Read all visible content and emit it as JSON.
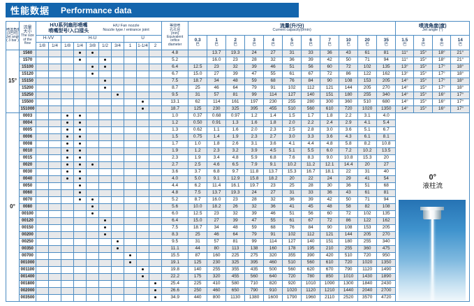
{
  "title": {
    "zh": "性能数据",
    "en": "Performance data"
  },
  "header": {
    "jet_angle_col": {
      "zh1": "喷流角度",
      "zh2": "(3巴时)",
      "en1": "Jet angle",
      "en2": "( 3 bar )"
    },
    "flow_col": {
      "zh1": "流量",
      "zh2": "大小",
      "en1": "The size",
      "en2": "of the",
      "en3": "flow"
    },
    "nozzle_group": {
      "zh1": "H/U系列扇形喷嘴",
      "zh2": "喷嘴型号/入口接头",
      "en1": "H/U  Fan nozzle",
      "en2": "Nozzle type / entrance joint"
    },
    "joint_groups": [
      {
        "label": "H-VV",
        "sizes": [
          "1/8",
          "1/4"
        ]
      },
      {
        "label": "H-U",
        "sizes": [
          "1/8",
          "1/4",
          "3/8",
          "1/2",
          "3/4"
        ]
      },
      {
        "label": "U",
        "sizes": [
          "1",
          "1-1/4",
          "2"
        ]
      }
    ],
    "orifice_col": {
      "zh1": "等效喷",
      "zh2": "孔孔径",
      "zh3": "(mm)",
      "en1": "Equivalent",
      "en2": "orifice",
      "en3": "diameter"
    },
    "capacity_group": {
      "zh": "流量(升/分)",
      "en": "Current capacity(l/min)"
    },
    "pressures": [
      "0.3",
      "1",
      "2",
      "3",
      "4",
      "5",
      "6",
      "7",
      "10",
      "20",
      "35"
    ],
    "bar_unit": "巴",
    "angle_group": {
      "zh": "喷流角度(度)",
      "en": "Jet angle (°)"
    },
    "angle_pressures": [
      "1.5",
      "3",
      "6",
      "14"
    ]
  },
  "chart_data": {
    "type": "table",
    "note": "joints indices map to columns: 0=H-VV 1/8, 1=H-VV 1/4, 2=H-U 1/8, 3=H-U 1/4, 4=H-U 3/8, 5=H-U 1/2, 6=H-U 3/4, 7=U 1, 8=U 1-1/4, 9=U 2"
  },
  "groups": [
    {
      "angle_label": "15°",
      "rows": [
        {
          "flow": "1560",
          "joints": [
            3,
            4
          ],
          "orifice": "4.8",
          "flows": [
            "",
            "13.7",
            "19.3",
            "24",
            "27",
            "31",
            "33",
            "36",
            "43",
            "61",
            "81"
          ],
          "angles": [
            "11°",
            "15°",
            "18°",
            "21°"
          ]
        },
        {
          "flow": "1570",
          "joints": [
            3,
            5
          ],
          "orifice": "5.2",
          "flows": [
            "",
            "16.0",
            "23",
            "28",
            "32",
            "36",
            "39",
            "42",
            "50",
            "71",
            "94"
          ],
          "angles": [
            "11°",
            "15°",
            "18°",
            "21°"
          ]
        },
        {
          "flow": "15100",
          "joints": [
            4,
            5
          ],
          "orifice": "6.4",
          "flows": [
            "12.5",
            "23",
            "32",
            "39",
            "46",
            "51",
            "56",
            "60",
            "72",
            "102",
            "135"
          ],
          "angles": [
            "13°",
            "15°",
            "17°",
            "18°"
          ]
        },
        {
          "flow": "15120",
          "joints": [
            4
          ],
          "orifice": "6.7",
          "flows": [
            "15.0",
            "27",
            "39",
            "47",
            "55",
            "61",
            "67",
            "72",
            "86",
            "122",
            "162"
          ],
          "angles": [
            "13°",
            "15°",
            "17°",
            "18°"
          ]
        },
        {
          "flow": "15150",
          "joints": [
            5
          ],
          "orifice": "7.5",
          "flows": [
            "18.7",
            "34",
            "48",
            "59",
            "68",
            "76",
            "84",
            "90",
            "108",
            "153",
            "205"
          ],
          "angles": [
            "14°",
            "15°",
            "17°",
            "18°"
          ]
        },
        {
          "flow": "15200",
          "joints": [
            5
          ],
          "orifice": "8.7",
          "flows": [
            "25",
            "46",
            "64",
            "79",
            "91",
            "102",
            "112",
            "121",
            "144",
            "205",
            "270"
          ],
          "angles": [
            "14°",
            "15°",
            "17°",
            "18°"
          ]
        },
        {
          "flow": "15250",
          "joints": [
            6
          ],
          "orifice": "9.5",
          "flows": [
            "31",
            "57",
            "81",
            "99",
            "114",
            "127",
            "140",
            "151",
            "180",
            "255",
            "340"
          ],
          "angles": [
            "14°",
            "15°",
            "16°",
            "17°"
          ]
        },
        {
          "flow": "15500",
          "joints": [
            8
          ],
          "orifice": "13.1",
          "flows": [
            "62",
            "114",
            "161",
            "197",
            "230",
            "255",
            "280",
            "300",
            "360",
            "510",
            "680"
          ],
          "angles": [
            "14°",
            "15°",
            "16°",
            "17°"
          ]
        },
        {
          "flow": "151000",
          "joints": [
            8
          ],
          "orifice": "18.7",
          "flows": [
            "125",
            "230",
            "325",
            "395",
            "455",
            "510",
            "560",
            "610",
            "720",
            "1020",
            "1350"
          ],
          "angles": [
            "14°",
            "15°",
            "16°",
            "17°"
          ]
        }
      ]
    },
    {
      "angle_label": "0°",
      "stream_label": {
        "deg": "0°",
        "zh": "液柱流"
      },
      "rows": [
        {
          "flow": "0003",
          "joints": [
            2,
            3
          ],
          "orifice": "1.0",
          "flows": [
            "0.37",
            "0.68",
            "0.97",
            "1.2",
            "1.4",
            "1.5",
            "1.7",
            "1.8",
            "2.2",
            "3.1",
            "4.0"
          ]
        },
        {
          "flow": "0004",
          "joints": [
            2,
            3
          ],
          "orifice": "1.2",
          "flows": [
            "0.50",
            "0.91",
            "1.3",
            "1.6",
            "1.8",
            "2.0",
            "2.2",
            "2.4",
            "2.9",
            "4.1",
            "5.4"
          ]
        },
        {
          "flow": "0005",
          "joints": [
            2,
            3
          ],
          "orifice": "1.3",
          "flows": [
            "0.62",
            "1.1",
            "1.6",
            "2.0",
            "2.3",
            "2.5",
            "2.8",
            "3.0",
            "3.6",
            "5.1",
            "6.7"
          ]
        },
        {
          "flow": "0006",
          "joints": [
            2,
            3
          ],
          "orifice": "1.5",
          "flows": [
            "0.75",
            "1.4",
            "1.9",
            "2.3",
            "2.7",
            "3.0",
            "3.3",
            "3.6",
            "4.3",
            "6.1",
            "8.1"
          ]
        },
        {
          "flow": "0008",
          "joints": [
            2,
            3
          ],
          "orifice": "1.7",
          "flows": [
            "1.0",
            "1.8",
            "2.6",
            "3.1",
            "3.6",
            "4.1",
            "4.4",
            "4.8",
            "5.8",
            "8.2",
            "10.8"
          ]
        },
        {
          "flow": "0010",
          "joints": [
            2,
            3
          ],
          "orifice": "1.9",
          "flows": [
            "1.2",
            "2.3",
            "3.2",
            "3.9",
            "4.5",
            "5.1",
            "5.5",
            "6.0",
            "7.2",
            "10.2",
            "13.5"
          ]
        },
        {
          "flow": "0015",
          "joints": [
            2,
            3
          ],
          "orifice": "2.3",
          "flows": [
            "1.9",
            "3.4",
            "4.8",
            "5.9",
            "6.8",
            "7.6",
            "8.3",
            "9.0",
            "10.8",
            "15.3",
            "20"
          ]
        },
        {
          "flow": "0020",
          "joints": [
            2,
            3,
            4
          ],
          "orifice": "2.7",
          "flows": [
            "2.5",
            "4.6",
            "6.5",
            "7.9",
            "9.1",
            "10.2",
            "11.2",
            "12.1",
            "14.4",
            "20",
            "27"
          ]
        },
        {
          "flow": "0030",
          "joints": [
            2,
            3
          ],
          "orifice": "3.6",
          "flows": [
            "3.7",
            "6.8",
            "9.7",
            "11.8",
            "13.7",
            "15.3",
            "16.7",
            "18.1",
            "22",
            "31",
            "40"
          ]
        },
        {
          "flow": "0040",
          "joints": [
            2,
            3
          ],
          "orifice": "4.0",
          "flows": [
            "5.0",
            "9.1",
            "12.9",
            "15.8",
            "18.2",
            "20",
            "22",
            "24",
            "29",
            "41",
            "54"
          ]
        },
        {
          "flow": "0050",
          "joints": [
            3
          ],
          "orifice": "4.4",
          "flows": [
            "6.2",
            "11.4",
            "16.1",
            "19.7",
            "23",
            "25",
            "28",
            "30",
            "36",
            "51",
            "68"
          ]
        },
        {
          "flow": "0060",
          "joints": [
            3
          ],
          "orifice": "4.8",
          "flows": [
            "7.5",
            "13.7",
            "19.3",
            "24",
            "27",
            "31",
            "33",
            "36",
            "43",
            "61",
            "81"
          ]
        },
        {
          "flow": "0070",
          "joints": [
            3,
            4
          ],
          "orifice": "5.2",
          "flows": [
            "8.7",
            "16.0",
            "23",
            "28",
            "32",
            "36",
            "39",
            "42",
            "50",
            "71",
            "94"
          ]
        },
        {
          "flow": "0080",
          "joints": [
            4
          ],
          "orifice": "5.6",
          "flows": [
            "10.0",
            "18.2",
            "26",
            "32",
            "36",
            "41",
            "45",
            "48",
            "58",
            "82",
            "108"
          ]
        },
        {
          "flow": "00100",
          "joints": [
            4
          ],
          "orifice": "6.0",
          "flows": [
            "12.5",
            "23",
            "32",
            "39",
            "46",
            "51",
            "56",
            "60",
            "72",
            "102",
            "135"
          ]
        },
        {
          "flow": "00120",
          "joints": [
            5
          ],
          "orifice": "6.4",
          "flows": [
            "15.0",
            "27",
            "39",
            "47",
            "55",
            "61",
            "67",
            "72",
            "86",
            "122",
            "162"
          ]
        },
        {
          "flow": "00150",
          "joints": [
            5
          ],
          "orifice": "7.5",
          "flows": [
            "18.7",
            "34",
            "48",
            "59",
            "68",
            "76",
            "84",
            "90",
            "108",
            "153",
            "205"
          ]
        },
        {
          "flow": "00200",
          "joints": [
            5
          ],
          "orifice": "8.3",
          "flows": [
            "25",
            "46",
            "64",
            "79",
            "91",
            "102",
            "112",
            "121",
            "144",
            "205",
            "270"
          ]
        },
        {
          "flow": "00250",
          "joints": [
            6
          ],
          "orifice": "9.5",
          "flows": [
            "31",
            "57",
            "81",
            "99",
            "114",
            "127",
            "140",
            "151",
            "180",
            "255",
            "340"
          ]
        },
        {
          "flow": "00350",
          "joints": [
            6
          ],
          "orifice": "11.1",
          "flows": [
            "44",
            "80",
            "113",
            "138",
            "160",
            "178",
            "195",
            "210",
            "255",
            "360",
            "475"
          ]
        },
        {
          "flow": "00700",
          "joints": [
            7
          ],
          "orifice": "15.5",
          "flows": [
            "87",
            "160",
            "225",
            "275",
            "320",
            "355",
            "390",
            "420",
            "510",
            "720",
            "950"
          ]
        },
        {
          "flow": "001000",
          "joints": [
            7
          ],
          "orifice": "19.1",
          "flows": [
            "125",
            "230",
            "325",
            "395",
            "460",
            "510",
            "560",
            "610",
            "720",
            "1020",
            "1350"
          ]
        },
        {
          "flow": "001100",
          "joints": [
            8
          ],
          "orifice": "19.8",
          "flows": [
            "140",
            "255",
            "355",
            "435",
            "500",
            "560",
            "620",
            "670",
            "790",
            "1120",
            "1490"
          ]
        },
        {
          "flow": "001400",
          "joints": [
            8
          ],
          "orifice": "22.2",
          "flows": [
            "175",
            "320",
            "455",
            "560",
            "640",
            "720",
            "780",
            "850",
            "1010",
            "1430",
            "1890"
          ]
        },
        {
          "flow": "001800",
          "joints": [
            9
          ],
          "orifice": "25.4",
          "flows": [
            "225",
            "410",
            "580",
            "710",
            "820",
            "920",
            "1010",
            "1090",
            "1300",
            "1840",
            "2430"
          ]
        },
        {
          "flow": "002000",
          "joints": [
            9
          ],
          "orifice": "26.6",
          "flows": [
            "250",
            "460",
            "650",
            "790",
            "910",
            "1020",
            "1120",
            "1210",
            "1440",
            "2040",
            "2700"
          ]
        },
        {
          "flow": "003500",
          "joints": [
            9
          ],
          "orifice": "34.9",
          "flows": [
            "440",
            "800",
            "1130",
            "1380",
            "1600",
            "1790",
            "1960",
            "2110",
            "2520",
            "3570",
            "4720"
          ]
        }
      ]
    }
  ]
}
